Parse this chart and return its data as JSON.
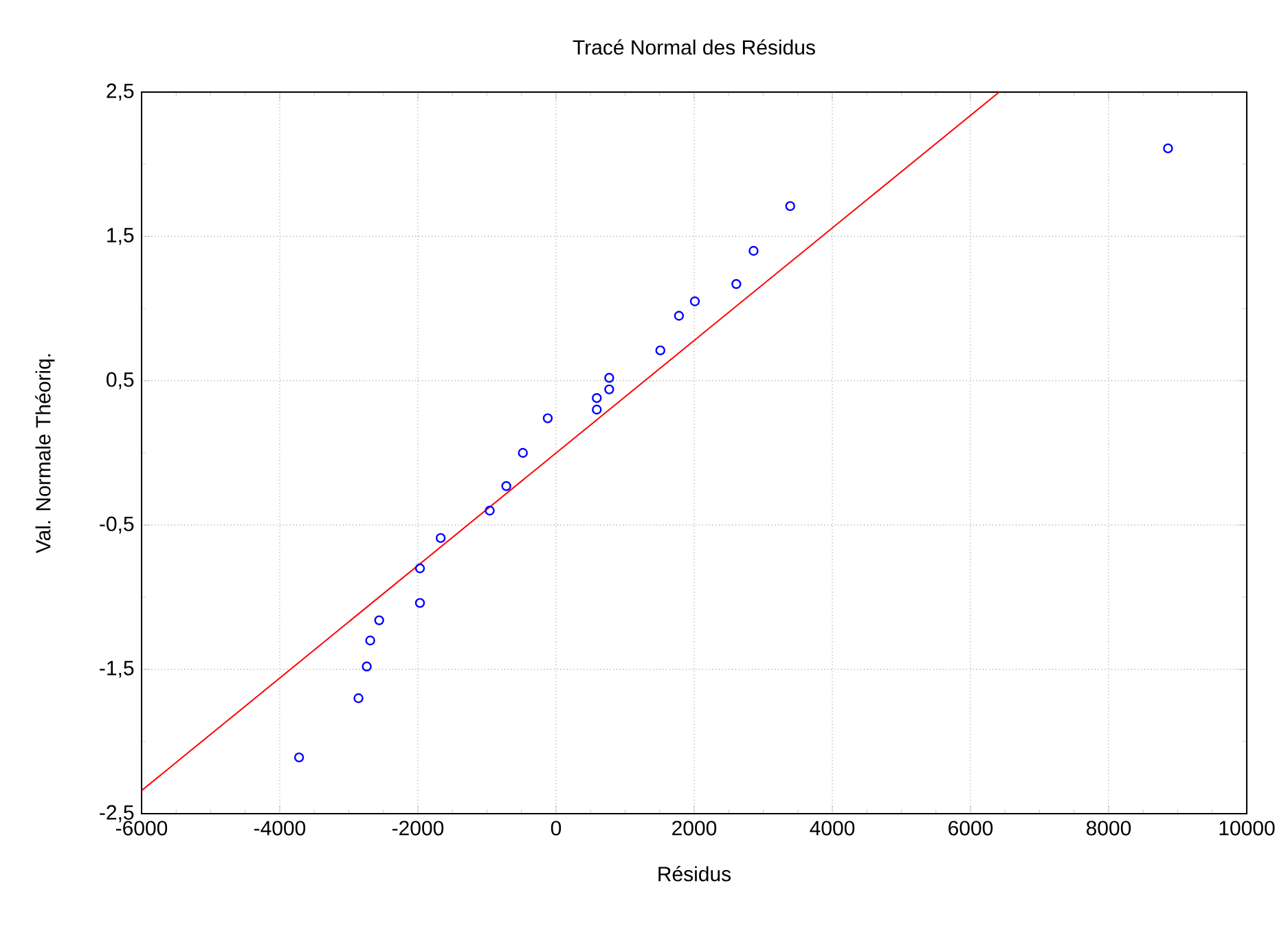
{
  "chart_data": {
    "type": "scatter",
    "title": "Tracé Normal des Résidus",
    "xlabel": "Résidus",
    "ylabel": "Val. Normale Théoriq.",
    "xlim": [
      -6000,
      10000
    ],
    "ylim": [
      -2.5,
      2.5
    ],
    "xticks": [
      -6000,
      -4000,
      -2000,
      0,
      2000,
      4000,
      6000,
      8000,
      10000
    ],
    "yticks": [
      {
        "value": -2.5,
        "label": "-2,5"
      },
      {
        "value": -1.5,
        "label": "-1,5"
      },
      {
        "value": -0.5,
        "label": "-0,5"
      },
      {
        "value": 0.5,
        "label": "0,5"
      },
      {
        "value": 1.5,
        "label": "1,5"
      },
      {
        "value": 2.5,
        "label": "2,5"
      }
    ],
    "grid": true,
    "marker": "circle",
    "series": [
      {
        "color": "#0000ff",
        "x": [
          -3720,
          -2860,
          -2740,
          -2690,
          -2560,
          -1970,
          -1970,
          -1670,
          -960,
          -720,
          -480,
          -120,
          590,
          590,
          770,
          770,
          1510,
          1780,
          2010,
          2610,
          2860,
          3390,
          8860
        ],
        "values": [
          -2.11,
          -1.7,
          -1.48,
          -1.3,
          -1.16,
          -1.04,
          -0.8,
          -0.59,
          -0.4,
          -0.23,
          0.0,
          0.24,
          0.3,
          0.38,
          0.44,
          0.52,
          0.71,
          0.95,
          1.05,
          1.17,
          1.4,
          1.71,
          2.11
        ]
      },
      {
        "type": "line",
        "marker": "none",
        "color": "#ff0000",
        "x": [
          -6000,
          6415
        ],
        "values": [
          -2.34,
          2.5
        ]
      }
    ]
  }
}
